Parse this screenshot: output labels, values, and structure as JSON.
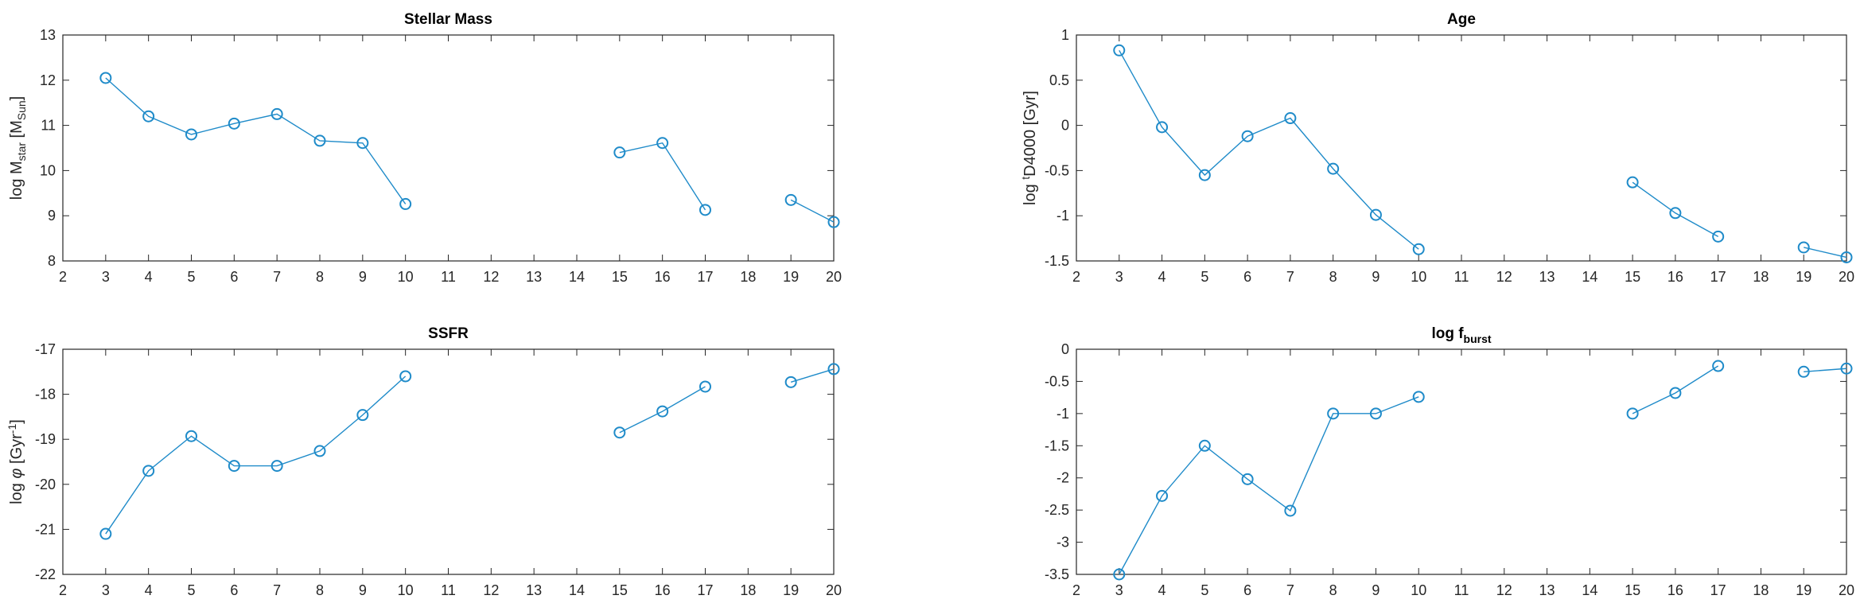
{
  "figure": {
    "series_color": "#1f8bc9",
    "axis_color": "#262626"
  },
  "chart_data": [
    {
      "type": "line",
      "title": "Stellar Mass",
      "ylabel": {
        "pre": "log M",
        "sub1": "star",
        "mid": " [M",
        "sub2": "Sun",
        "post": "]"
      },
      "xlim": [
        2,
        20
      ],
      "ylim": [
        8,
        13
      ],
      "xticks": [
        2,
        3,
        4,
        5,
        6,
        7,
        8,
        9,
        10,
        11,
        12,
        13,
        14,
        15,
        16,
        17,
        18,
        19,
        20
      ],
      "yticks": [
        8,
        9,
        10,
        11,
        12,
        13
      ],
      "ytick_labels": [
        "8",
        "9",
        "10",
        "11",
        "12",
        "13"
      ],
      "marker": "circle",
      "segments": [
        {
          "x": [
            3,
            4,
            5,
            6,
            7,
            8,
            9,
            10
          ],
          "y": [
            12.05,
            11.2,
            10.8,
            11.04,
            11.25,
            10.66,
            10.61,
            9.26
          ]
        },
        {
          "x": [
            15,
            16,
            17
          ],
          "y": [
            10.4,
            10.61,
            9.13
          ]
        },
        {
          "x": [
            19,
            20
          ],
          "y": [
            9.35,
            8.86
          ]
        }
      ]
    },
    {
      "type": "line",
      "title": "Age",
      "ylabel": {
        "pre": "log ",
        "sup": "t",
        "post": "D4000 [Gyr]"
      },
      "xlim": [
        2,
        20
      ],
      "ylim": [
        -1.5,
        1
      ],
      "xticks": [
        2,
        3,
        4,
        5,
        6,
        7,
        8,
        9,
        10,
        11,
        12,
        13,
        14,
        15,
        16,
        17,
        18,
        19,
        20
      ],
      "yticks": [
        -1.5,
        -1,
        -0.5,
        0,
        0.5,
        1
      ],
      "ytick_labels": [
        "-1.5",
        "-1",
        "-0.5",
        "0",
        "0.5",
        "1"
      ],
      "marker": "circle",
      "segments": [
        {
          "x": [
            3,
            4,
            5,
            6,
            7,
            8,
            9,
            10
          ],
          "y": [
            0.83,
            -0.02,
            -0.55,
            -0.12,
            0.08,
            -0.48,
            -0.99,
            -1.37
          ]
        },
        {
          "x": [
            15,
            16,
            17
          ],
          "y": [
            -0.63,
            -0.97,
            -1.23
          ]
        },
        {
          "x": [
            19,
            20
          ],
          "y": [
            -1.35,
            -1.46
          ]
        }
      ]
    },
    {
      "type": "line",
      "title": "SSFR",
      "ylabel": {
        "pre": "log ",
        "greek": "φ",
        "mid": " [Gyr",
        "sup": "-1",
        "post": "]"
      },
      "xlim": [
        2,
        20
      ],
      "ylim": [
        -22,
        -17
      ],
      "xticks": [
        2,
        3,
        4,
        5,
        6,
        7,
        8,
        9,
        10,
        11,
        12,
        13,
        14,
        15,
        16,
        17,
        18,
        19,
        20
      ],
      "yticks": [
        -22,
        -21,
        -20,
        -19,
        -18,
        -17
      ],
      "ytick_labels": [
        "-22",
        "-21",
        "-20",
        "-19",
        "-18",
        "-17"
      ],
      "marker": "circle",
      "segments": [
        {
          "x": [
            3,
            4,
            5,
            6,
            7,
            8,
            9,
            10
          ],
          "y": [
            -21.1,
            -19.7,
            -18.93,
            -19.59,
            -19.59,
            -19.26,
            -18.46,
            -17.6
          ]
        },
        {
          "x": [
            15,
            16,
            17
          ],
          "y": [
            -18.85,
            -18.38,
            -17.83
          ]
        },
        {
          "x": [
            19,
            20
          ],
          "y": [
            -17.73,
            -17.44
          ]
        }
      ]
    },
    {
      "type": "line",
      "title": "log f",
      "title_sub": "burst",
      "ylabel": null,
      "xlim": [
        2,
        20
      ],
      "ylim": [
        -3.5,
        0
      ],
      "xticks": [
        2,
        3,
        4,
        5,
        6,
        7,
        8,
        9,
        10,
        11,
        12,
        13,
        14,
        15,
        16,
        17,
        18,
        19,
        20
      ],
      "yticks": [
        -3.5,
        -3,
        -2.5,
        -2,
        -1.5,
        -1,
        -0.5,
        0
      ],
      "ytick_labels": [
        "-3.5",
        "-3",
        "-2.5",
        "-2",
        "-1.5",
        "-1",
        "-0.5",
        "0"
      ],
      "marker": "circle",
      "segments": [
        {
          "x": [
            3,
            4,
            5,
            6,
            7,
            8,
            9,
            10
          ],
          "y": [
            -3.5,
            -2.28,
            -1.5,
            -2.02,
            -2.51,
            -1.0,
            -1.0,
            -0.74
          ]
        },
        {
          "x": [
            15,
            16,
            17
          ],
          "y": [
            -1.0,
            -0.68,
            -0.26
          ]
        },
        {
          "x": [
            19,
            20
          ],
          "y": [
            -0.35,
            -0.3
          ]
        }
      ]
    }
  ]
}
